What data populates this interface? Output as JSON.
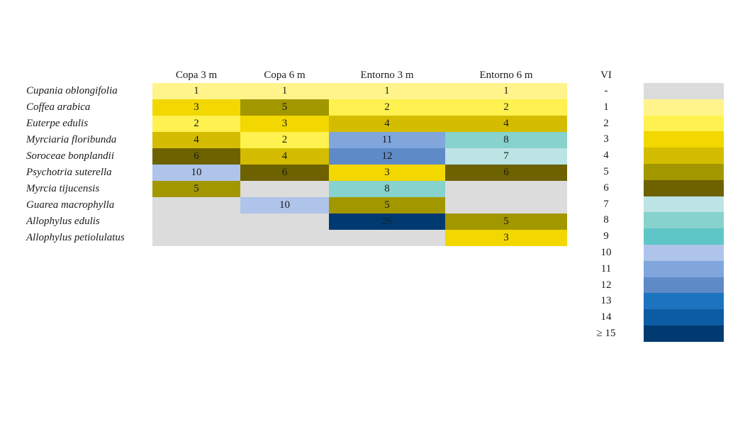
{
  "chart_data": {
    "type": "heatmap",
    "columns": [
      "Copa 3 m",
      "Copa 6 m",
      "Entorno 3 m",
      "Entorno 6 m"
    ],
    "rows": [
      "Cupania oblongifolia",
      "Coffea arabica",
      "Euterpe edulis",
      "Myrciaria floribunda",
      "Soroceae bonplandii",
      "Psychotria suterella",
      "Myrcia tijucensis",
      "Guarea macrophylla",
      "Allophylus edulis",
      "Allophylus petiolulatus"
    ],
    "values": [
      [
        1,
        1,
        1,
        1
      ],
      [
        3,
        5,
        2,
        2
      ],
      [
        2,
        3,
        4,
        4
      ],
      [
        4,
        2,
        11,
        8
      ],
      [
        6,
        4,
        12,
        7
      ],
      [
        10,
        6,
        3,
        6
      ],
      [
        5,
        null,
        8,
        null
      ],
      [
        null,
        10,
        5,
        null
      ],
      [
        null,
        null,
        26,
        5
      ],
      [
        null,
        null,
        null,
        3
      ]
    ],
    "legend": {
      "title": "VI",
      "items": [
        {
          "label": "-",
          "color": "#dcdcdc"
        },
        {
          "label": "1",
          "color": "#fff48c"
        },
        {
          "label": "2",
          "color": "#fff14f"
        },
        {
          "label": "3",
          "color": "#f2d700"
        },
        {
          "label": "4",
          "color": "#d4bd00"
        },
        {
          "label": "5",
          "color": "#a39700"
        },
        {
          "label": "6",
          "color": "#6d6100"
        },
        {
          "label": "7",
          "color": "#bce4e4"
        },
        {
          "label": "8",
          "color": "#87d2cc"
        },
        {
          "label": "9",
          "color": "#5ec6c6"
        },
        {
          "label": "10",
          "color": "#aec4ea"
        },
        {
          "label": "11",
          "color": "#80a6dc"
        },
        {
          "label": "12",
          "color": "#5f8ac8"
        },
        {
          "label": "13",
          "color": "#1c74be"
        },
        {
          "label": "14",
          "color": "#0b5ca3"
        },
        {
          "label": "≥ 15",
          "color": "#003a70"
        }
      ]
    }
  }
}
